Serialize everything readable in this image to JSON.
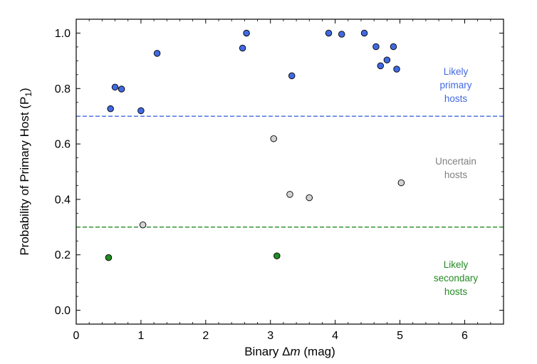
{
  "chart_data": {
    "type": "scatter",
    "xlabel": {
      "pre": "Binary Δ",
      "italic": "m",
      "post": " (mag)"
    },
    "ylabel": {
      "pre": "Probability of Primary Host (P",
      "sub": "1",
      "post": ")"
    },
    "xlim": [
      0,
      6.6
    ],
    "ylim": [
      -0.05,
      1.05
    ],
    "xticks": [
      0,
      1,
      2,
      3,
      4,
      5,
      6
    ],
    "yticks": [
      0.0,
      0.2,
      0.4,
      0.6,
      0.8,
      1.0
    ],
    "xtick_labels": [
      "0",
      "1",
      "2",
      "3",
      "4",
      "5",
      "6"
    ],
    "ytick_labels": [
      "0.0",
      "0.2",
      "0.4",
      "0.6",
      "0.8",
      "1.0"
    ],
    "minor_ticks": true,
    "grid": false,
    "thresholds": [
      {
        "y": 0.7,
        "color": "#4169e1"
      },
      {
        "y": 0.3,
        "color": "#228b22"
      }
    ],
    "groups": [
      {
        "key": "primary",
        "fill": "#4169e1",
        "region_label": [
          "Likely",
          "primary",
          "hosts"
        ],
        "region_label_color": "#4169e1",
        "points": [
          [
            0.53,
            0.727
          ],
          [
            0.6,
            0.805
          ],
          [
            0.7,
            0.798
          ],
          [
            1.0,
            0.72
          ],
          [
            1.25,
            0.927
          ],
          [
            2.57,
            0.946
          ],
          [
            2.63,
            1.0
          ],
          [
            3.33,
            0.846
          ],
          [
            3.9,
            1.0
          ],
          [
            4.1,
            0.996
          ],
          [
            4.45,
            1.0
          ],
          [
            4.63,
            0.951
          ],
          [
            4.7,
            0.882
          ],
          [
            4.8,
            0.903
          ],
          [
            4.9,
            0.951
          ],
          [
            4.95,
            0.87
          ]
        ]
      },
      {
        "key": "uncertain",
        "fill": "#d3d3d3",
        "region_label": [
          "Uncertain",
          "hosts"
        ],
        "region_label_color": "#808080",
        "points": [
          [
            1.03,
            0.308
          ],
          [
            3.05,
            0.619
          ],
          [
            3.3,
            0.418
          ],
          [
            3.6,
            0.406
          ],
          [
            5.02,
            0.46
          ]
        ]
      },
      {
        "key": "secondary",
        "fill": "#228b22",
        "region_label": [
          "Likely",
          "secondary",
          "hosts"
        ],
        "region_label_color": "#228b22",
        "points": [
          [
            0.5,
            0.19
          ],
          [
            3.1,
            0.196
          ]
        ]
      }
    ]
  }
}
